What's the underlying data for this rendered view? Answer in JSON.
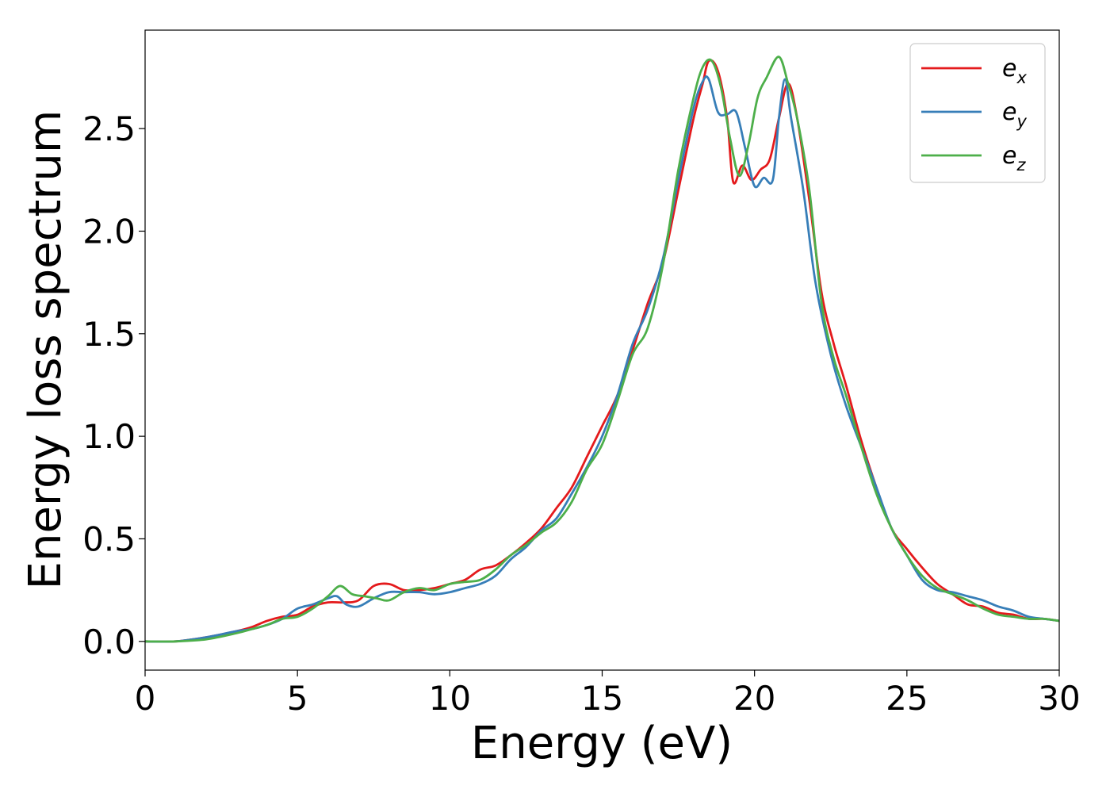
{
  "chart_data": {
    "type": "line",
    "title": "",
    "xlabel": "Energy (eV)",
    "ylabel": "Energy loss spectrum",
    "xlim": [
      0,
      30
    ],
    "ylim": [
      -0.14,
      2.98
    ],
    "xticks": [
      0,
      5,
      10,
      15,
      20,
      25,
      30
    ],
    "xtick_labels": [
      "0",
      "5",
      "10",
      "15",
      "20",
      "25",
      "30"
    ],
    "yticks": [
      0.0,
      0.5,
      1.0,
      1.5,
      2.0,
      2.5
    ],
    "ytick_labels": [
      "0.0",
      "0.5",
      "1.0",
      "1.5",
      "2.0",
      "2.5"
    ],
    "grid": false,
    "legend_position": "top-right",
    "series": [
      {
        "name": "e_x",
        "label_base": "e",
        "label_sub": "x",
        "color": "#e41a1c",
        "x": [
          0,
          1,
          2,
          3,
          3.5,
          4,
          4.5,
          5,
          5.5,
          6,
          6.5,
          7,
          7.5,
          8,
          8.5,
          9,
          9.5,
          10,
          10.5,
          11,
          11.5,
          12,
          12.5,
          13,
          13.5,
          14,
          14.5,
          15,
          15.5,
          16,
          16.5,
          17,
          17.5,
          18,
          18.3,
          18.5,
          18.8,
          19.1,
          19.3,
          19.6,
          19.9,
          20.2,
          20.5,
          20.8,
          21.1,
          21.4,
          21.8,
          22.2,
          22.6,
          23,
          23.5,
          24,
          24.5,
          25,
          25.5,
          26,
          26.5,
          27,
          27.5,
          28,
          28.5,
          29,
          29.5,
          30
        ],
        "y": [
          0.0,
          0.0,
          0.02,
          0.05,
          0.07,
          0.1,
          0.12,
          0.13,
          0.17,
          0.19,
          0.19,
          0.2,
          0.27,
          0.28,
          0.25,
          0.25,
          0.26,
          0.28,
          0.3,
          0.35,
          0.37,
          0.42,
          0.48,
          0.55,
          0.65,
          0.75,
          0.9,
          1.05,
          1.2,
          1.42,
          1.65,
          1.85,
          2.2,
          2.55,
          2.72,
          2.83,
          2.78,
          2.55,
          2.24,
          2.32,
          2.25,
          2.3,
          2.35,
          2.55,
          2.72,
          2.55,
          2.15,
          1.7,
          1.45,
          1.25,
          0.98,
          0.75,
          0.55,
          0.45,
          0.36,
          0.28,
          0.23,
          0.18,
          0.17,
          0.14,
          0.13,
          0.11,
          0.11,
          0.1
        ]
      },
      {
        "name": "e_y",
        "label_base": "e",
        "label_sub": "y",
        "color": "#377eb8",
        "x": [
          0,
          1,
          2,
          3,
          3.5,
          4,
          4.5,
          5,
          5.5,
          6,
          6.3,
          6.6,
          7,
          7.5,
          8,
          8.5,
          9,
          9.5,
          10,
          10.5,
          11,
          11.5,
          12,
          12.5,
          13,
          13.5,
          14,
          14.5,
          15,
          15.5,
          16,
          16.5,
          17,
          17.5,
          18,
          18.3,
          18.5,
          18.8,
          19.1,
          19.4,
          19.7,
          20,
          20.3,
          20.6,
          20.8,
          21,
          21.2,
          21.6,
          22,
          22.5,
          23,
          23.5,
          24,
          24.5,
          25,
          25.5,
          26,
          26.5,
          27,
          27.5,
          28,
          28.5,
          29,
          29.5,
          30
        ],
        "y": [
          0.0,
          0.0,
          0.02,
          0.05,
          0.06,
          0.08,
          0.11,
          0.16,
          0.18,
          0.21,
          0.22,
          0.18,
          0.17,
          0.21,
          0.24,
          0.24,
          0.24,
          0.23,
          0.24,
          0.26,
          0.28,
          0.32,
          0.4,
          0.46,
          0.54,
          0.6,
          0.72,
          0.85,
          1.0,
          1.2,
          1.45,
          1.62,
          1.87,
          2.25,
          2.6,
          2.73,
          2.74,
          2.58,
          2.57,
          2.58,
          2.4,
          2.22,
          2.26,
          2.25,
          2.55,
          2.74,
          2.55,
          2.2,
          1.75,
          1.4,
          1.15,
          0.95,
          0.75,
          0.55,
          0.42,
          0.3,
          0.25,
          0.24,
          0.22,
          0.2,
          0.17,
          0.15,
          0.12,
          0.11,
          0.1
        ]
      },
      {
        "name": "e_z",
        "label_base": "e",
        "label_sub": "z",
        "color": "#4daf4a",
        "x": [
          0,
          1,
          2,
          3,
          3.5,
          4,
          4.5,
          5,
          5.5,
          6,
          6.4,
          6.8,
          7.2,
          7.6,
          8,
          8.5,
          9,
          9.5,
          10,
          10.5,
          11,
          11.5,
          12,
          12.5,
          13,
          13.5,
          14,
          14.5,
          15,
          15.5,
          16,
          16.5,
          17,
          17.5,
          18,
          18.3,
          18.6,
          18.9,
          19.2,
          19.5,
          19.8,
          20.1,
          20.4,
          20.8,
          21.1,
          21.4,
          21.8,
          22.2,
          22.6,
          23,
          23.5,
          24,
          24.5,
          25,
          25.5,
          26,
          26.5,
          27,
          27.5,
          28,
          28.5,
          29,
          29.5,
          30
        ],
        "y": [
          0.0,
          0.0,
          0.01,
          0.04,
          0.06,
          0.08,
          0.11,
          0.12,
          0.16,
          0.22,
          0.27,
          0.23,
          0.22,
          0.21,
          0.2,
          0.24,
          0.26,
          0.25,
          0.28,
          0.29,
          0.3,
          0.35,
          0.42,
          0.47,
          0.53,
          0.58,
          0.68,
          0.84,
          0.96,
          1.17,
          1.4,
          1.53,
          1.84,
          2.3,
          2.65,
          2.8,
          2.83,
          2.7,
          2.45,
          2.27,
          2.42,
          2.65,
          2.75,
          2.85,
          2.72,
          2.55,
          2.2,
          1.65,
          1.38,
          1.2,
          0.95,
          0.72,
          0.55,
          0.42,
          0.32,
          0.26,
          0.23,
          0.2,
          0.16,
          0.13,
          0.12,
          0.11,
          0.11,
          0.1
        ]
      }
    ]
  }
}
